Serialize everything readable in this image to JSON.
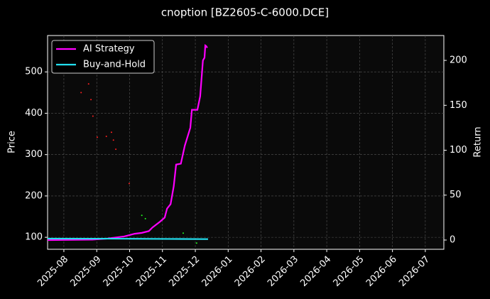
{
  "chart_data": {
    "type": "line",
    "title": "cnoption [BZ2605-C-6000.DCE]",
    "ylabel": "Price",
    "y2label": "Return",
    "xlim": [
      2025.542,
      2026.547
    ],
    "xticks": [
      {
        "value": 2025.5833,
        "label": "2025-08"
      },
      {
        "value": 2025.6667,
        "label": "2025-09"
      },
      {
        "value": 2025.75,
        "label": "2025-10"
      },
      {
        "value": 2025.8333,
        "label": "2025-11"
      },
      {
        "value": 2025.9167,
        "label": "2025-12"
      },
      {
        "value": 2026.0,
        "label": "2026-01"
      },
      {
        "value": 2026.0833,
        "label": "2026-02"
      },
      {
        "value": 2026.1667,
        "label": "2026-03"
      },
      {
        "value": 2026.25,
        "label": "2026-04"
      },
      {
        "value": 2026.3333,
        "label": "2026-05"
      },
      {
        "value": 2026.4167,
        "label": "2026-06"
      },
      {
        "value": 2026.5,
        "label": "2026-07"
      }
    ],
    "ylim": [
      71,
      588
    ],
    "yticks": [
      100,
      200,
      300,
      400,
      500
    ],
    "y2lim": [
      -10.3,
      227.7
    ],
    "y2ticks": [
      0,
      50,
      100,
      150,
      200
    ],
    "grid": true,
    "legend": "upper left",
    "series": [
      {
        "name": "AI Strategy",
        "color": "#ff00ff",
        "axis": "y2",
        "x": [
          2025.542,
          2025.655,
          2025.691,
          2025.736,
          2025.745,
          2025.763,
          2025.781,
          2025.799,
          2025.808,
          2025.826,
          2025.839,
          2025.845,
          2025.854,
          2025.862,
          2025.868,
          2025.88,
          2025.89,
          2025.904,
          2025.908,
          2025.922,
          2025.929,
          2025.936,
          2025.94,
          2025.942,
          2025.944,
          2025.947
        ],
        "values": [
          0,
          0.5,
          1.5,
          4,
          5,
          7,
          8,
          10,
          14,
          20,
          25,
          35,
          40,
          60,
          84,
          85,
          105,
          125,
          145,
          145,
          160,
          200,
          203,
          216.6,
          216,
          214
        ]
      },
      {
        "name": "Buy-and-Hold",
        "color": "#22e0f0",
        "axis": "y2",
        "x": [
          2025.542,
          2025.7,
          2025.85,
          2025.949
        ],
        "values": [
          1.6,
          1.5,
          1.2,
          1.0
        ]
      }
    ],
    "markers": [
      {
        "color": "#ff2020",
        "axis": "y",
        "x": [
          2025.627,
          2025.646,
          2025.652,
          2025.657,
          2025.668,
          2025.691,
          2025.704,
          2025.709,
          2025.715,
          2025.749
        ],
        "values": [
          450,
          471,
          433,
          393,
          342,
          344,
          354,
          335,
          313,
          230
        ]
      },
      {
        "color": "#20ff20",
        "axis": "y",
        "x": [
          2025.781,
          2025.79,
          2025.886,
          2025.92
        ],
        "values": [
          153,
          145,
          110,
          86
        ]
      }
    ]
  }
}
